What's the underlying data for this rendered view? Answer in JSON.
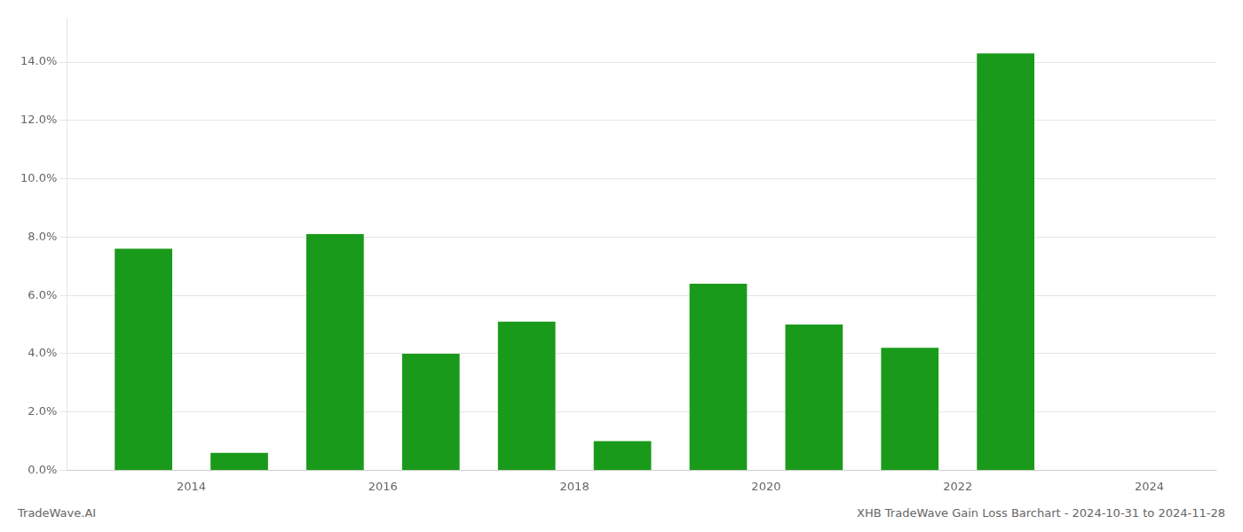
{
  "chart_data": {
    "type": "bar",
    "x": [
      2014,
      2015,
      2016,
      2017,
      2018,
      2019,
      2020,
      2021,
      2022,
      2023,
      2024
    ],
    "values": [
      0.076,
      0.006,
      0.081,
      0.04,
      0.051,
      0.01,
      0.064,
      0.05,
      0.042,
      0.143,
      null
    ],
    "color": "#1a9a1a",
    "xlim": [
      2013.2,
      2025.2
    ],
    "xticks": [
      {
        "value": 2014.5,
        "label": "2014"
      },
      {
        "value": 2016.5,
        "label": "2016"
      },
      {
        "value": 2018.5,
        "label": "2018"
      },
      {
        "value": 2020.5,
        "label": "2020"
      },
      {
        "value": 2022.5,
        "label": "2022"
      },
      {
        "value": 2024.5,
        "label": "2024"
      }
    ],
    "ylim": [
      0,
      0.155
    ],
    "yticks": [
      {
        "value": 0.0,
        "label": "0.0%"
      },
      {
        "value": 0.02,
        "label": "2.0%"
      },
      {
        "value": 0.04,
        "label": "4.0%"
      },
      {
        "value": 0.06,
        "label": "6.0%"
      },
      {
        "value": 0.08,
        "label": "8.0%"
      },
      {
        "value": 0.1,
        "label": "10.0%"
      },
      {
        "value": 0.12,
        "label": "12.0%"
      },
      {
        "value": 0.14,
        "label": "14.0%"
      }
    ],
    "grid": "y",
    "annotations": [
      "TradeWave.AI",
      "XHB TradeWave Gain Loss Barchart - 2024-10-31 to 2024-11-28"
    ]
  }
}
